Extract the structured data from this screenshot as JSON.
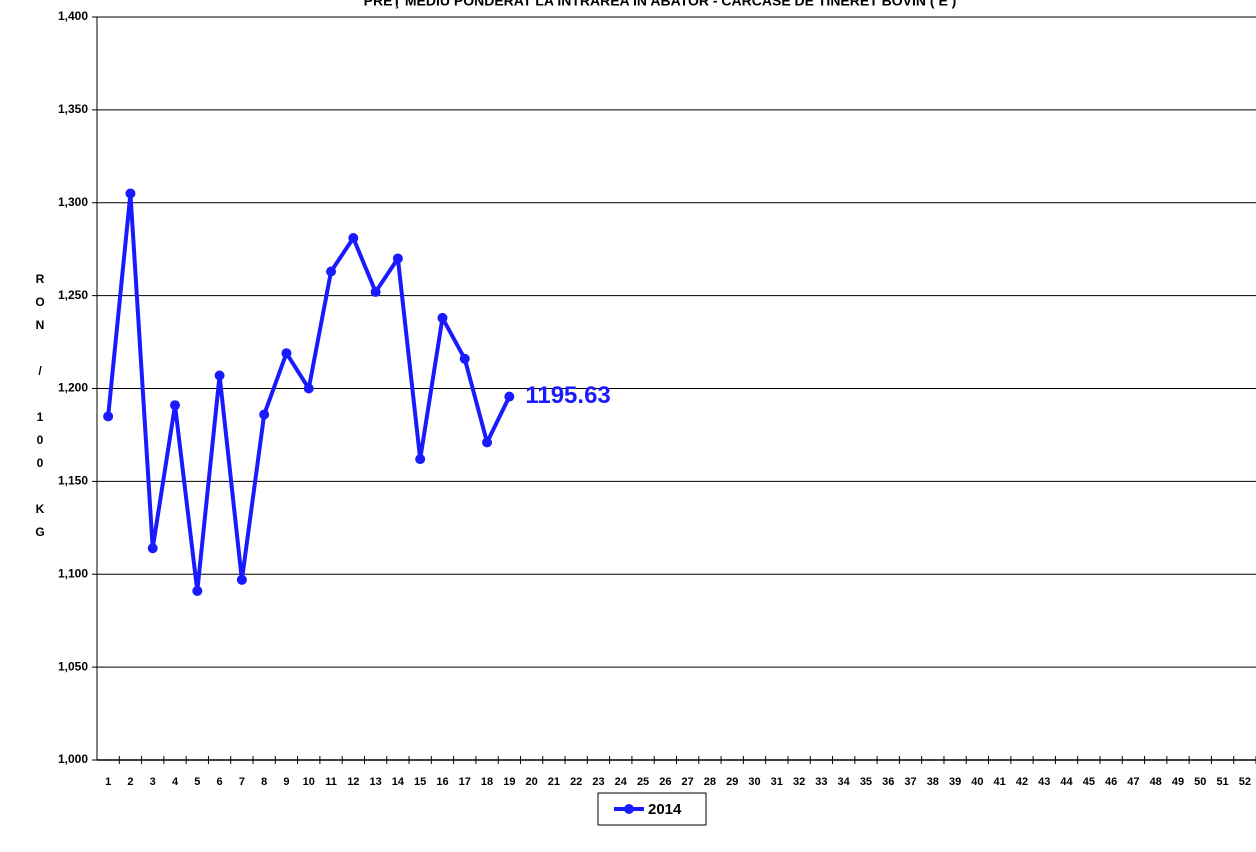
{
  "chart_data": {
    "type": "line",
    "title": "PREŢ MEDIU PONDERAT LA INTRAREA ÎN ABATOR - CARCASE DE TINERET BOVIN ( E )",
    "y_label": "RON / 100 KG",
    "categories": [
      1,
      2,
      3,
      4,
      5,
      6,
      7,
      8,
      9,
      10,
      11,
      12,
      13,
      14,
      15,
      16,
      17,
      18,
      19,
      20,
      21,
      22,
      23,
      24,
      25,
      26,
      27,
      28,
      29,
      30,
      31,
      32,
      33,
      34,
      35,
      36,
      37,
      38,
      39,
      40,
      41,
      42,
      43,
      44,
      45,
      46,
      47,
      48,
      49,
      50,
      51,
      52
    ],
    "series": [
      {
        "name": "2014",
        "color": "#1a1aff",
        "values": [
          1185,
          1305,
          1114,
          1191,
          1091,
          1207,
          1097,
          1186,
          1219,
          1200,
          1263,
          1281,
          1252,
          1270,
          1162,
          1238,
          1216,
          1171,
          1195.63,
          null,
          null,
          null,
          null,
          null,
          null,
          null,
          null,
          null,
          null,
          null,
          null,
          null,
          null,
          null,
          null,
          null,
          null,
          null,
          null,
          null,
          null,
          null,
          null,
          null,
          null,
          null,
          null,
          null,
          null,
          null,
          null,
          null
        ]
      }
    ],
    "ylim": [
      1000,
      1400
    ],
    "yticks": [
      {
        "value": 1000,
        "label": "1,000"
      },
      {
        "value": 1050,
        "label": "1,050"
      },
      {
        "value": 1100,
        "label": "1,100"
      },
      {
        "value": 1150,
        "label": "1,150"
      },
      {
        "value": 1200,
        "label": "1,200"
      },
      {
        "value": 1250,
        "label": "1,250"
      },
      {
        "value": 1300,
        "label": "1,300"
      },
      {
        "value": 1350,
        "label": "1,350"
      },
      {
        "value": 1400,
        "label": "1,400"
      }
    ],
    "grid": true,
    "legend": "bottom"
  }
}
